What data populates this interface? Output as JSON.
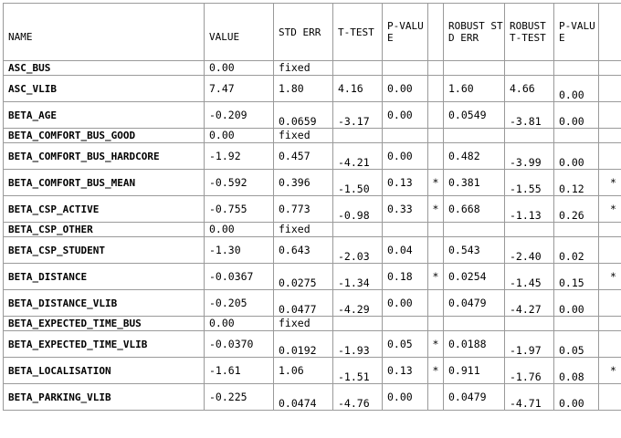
{
  "columns": {
    "name": "NAME",
    "value": "VALUE",
    "std_err": "STD ERR",
    "t_test": "T-TEST",
    "p_value": "P-VALUE",
    "flag": "",
    "robust_std_err": "ROBUST STD ERR",
    "robust_t_test": "ROBUST T-TEST",
    "robust_p_value": "P-VALUE",
    "robust_flag": ""
  },
  "rows": [
    {
      "name": "ASC_BUS",
      "value": "0.00",
      "std_err": "fixed",
      "t_test": "",
      "p_value": "",
      "flag": "",
      "robust_std_err": "",
      "robust_t_test": "",
      "robust_p_value": "",
      "robust_flag": ""
    },
    {
      "name": "ASC_VLIB",
      "value": "7.47",
      "std_err": "1.80",
      "t_test": "4.16",
      "p_value": "0.00",
      "flag": "",
      "robust_std_err": "1.60",
      "robust_t_test": "4.66",
      "robust_p_value": "0.00",
      "robust_flag": ""
    },
    {
      "name": "BETA_AGE",
      "value": "-0.209",
      "std_err": "0.0659",
      "t_test": "-3.17",
      "p_value": "0.00",
      "flag": "",
      "robust_std_err": "0.0549",
      "robust_t_test": "-3.81",
      "robust_p_value": "0.00",
      "robust_flag": ""
    },
    {
      "name": "BETA_COMFORT_BUS_GOOD",
      "value": "0.00",
      "std_err": "fixed",
      "t_test": "",
      "p_value": "",
      "flag": "",
      "robust_std_err": "",
      "robust_t_test": "",
      "robust_p_value": "",
      "robust_flag": ""
    },
    {
      "name": "BETA_COMFORT_BUS_HARDCORE",
      "value": "-1.92",
      "std_err": "0.457",
      "t_test": "-4.21",
      "p_value": "0.00",
      "flag": "",
      "robust_std_err": "0.482",
      "robust_t_test": "-3.99",
      "robust_p_value": "0.00",
      "robust_flag": ""
    },
    {
      "name": "BETA_COMFORT_BUS_MEAN",
      "value": "-0.592",
      "std_err": "0.396",
      "t_test": "-1.50",
      "p_value": "0.13",
      "flag": "*",
      "robust_std_err": "0.381",
      "robust_t_test": "-1.55",
      "robust_p_value": "0.12",
      "robust_flag": "*"
    },
    {
      "name": "BETA_CSP_ACTIVE",
      "value": "-0.755",
      "std_err": "0.773",
      "t_test": "-0.98",
      "p_value": "0.33",
      "flag": "*",
      "robust_std_err": "0.668",
      "robust_t_test": "-1.13",
      "robust_p_value": "0.26",
      "robust_flag": "*"
    },
    {
      "name": "BETA_CSP_OTHER",
      "value": "0.00",
      "std_err": "fixed",
      "t_test": "",
      "p_value": "",
      "flag": "",
      "robust_std_err": "",
      "robust_t_test": "",
      "robust_p_value": "",
      "robust_flag": ""
    },
    {
      "name": "BETA_CSP_STUDENT",
      "value": "-1.30",
      "std_err": "0.643",
      "t_test": "-2.03",
      "p_value": "0.04",
      "flag": "",
      "robust_std_err": "0.543",
      "robust_t_test": "-2.40",
      "robust_p_value": "0.02",
      "robust_flag": ""
    },
    {
      "name": "BETA_DISTANCE",
      "value": "-0.0367",
      "std_err": "0.0275",
      "t_test": "-1.34",
      "p_value": "0.18",
      "flag": "*",
      "robust_std_err": "0.0254",
      "robust_t_test": "-1.45",
      "robust_p_value": "0.15",
      "robust_flag": "*"
    },
    {
      "name": "BETA_DISTANCE_VLIB",
      "value": "-0.205",
      "std_err": "0.0477",
      "t_test": "-4.29",
      "p_value": "0.00",
      "flag": "",
      "robust_std_err": "0.0479",
      "robust_t_test": "-4.27",
      "robust_p_value": "0.00",
      "robust_flag": ""
    },
    {
      "name": "BETA_EXPECTED_TIME_BUS",
      "value": "0.00",
      "std_err": "fixed",
      "t_test": "",
      "p_value": "",
      "flag": "",
      "robust_std_err": "",
      "robust_t_test": "",
      "robust_p_value": "",
      "robust_flag": ""
    },
    {
      "name": "BETA_EXPECTED_TIME_VLIB",
      "value": "-0.0370",
      "std_err": "0.0192",
      "t_test": "-1.93",
      "p_value": "0.05",
      "flag": "*",
      "robust_std_err": "0.0188",
      "robust_t_test": "-1.97",
      "robust_p_value": "0.05",
      "robust_flag": ""
    },
    {
      "name": "BETA_LOCALISATION",
      "value": "-1.61",
      "std_err": "1.06",
      "t_test": "-1.51",
      "p_value": "0.13",
      "flag": "*",
      "robust_std_err": "0.911",
      "robust_t_test": "-1.76",
      "robust_p_value": "0.08",
      "robust_flag": "*"
    },
    {
      "name": "BETA_PARKING_VLIB",
      "value": "-0.225",
      "std_err": "0.0474",
      "t_test": "-4.76",
      "p_value": "0.00",
      "flag": "",
      "robust_std_err": "0.0479",
      "robust_t_test": "-4.71",
      "robust_p_value": "0.00",
      "robust_flag": ""
    }
  ]
}
